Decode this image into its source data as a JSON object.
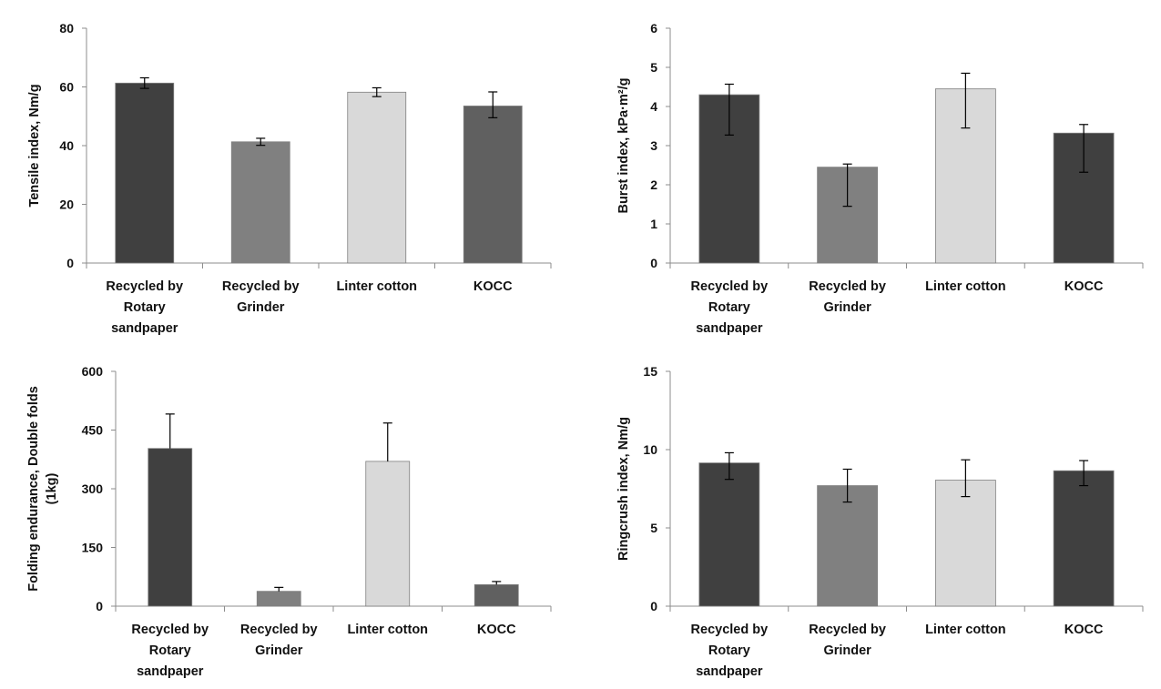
{
  "chart_data": [
    {
      "type": "bar",
      "categories": [
        [
          "Recycled by",
          "Rotary",
          "sandpaper"
        ],
        [
          "Recycled by",
          "Grinder"
        ],
        [
          "Linter cotton"
        ],
        [
          "KOCC"
        ]
      ],
      "values": [
        61.3,
        41.3,
        58.2,
        53.5
      ],
      "error_up": [
        1.8,
        1.2,
        1.5,
        4.8
      ],
      "error_down": [
        1.8,
        1.2,
        1.5,
        4.0
      ],
      "colors": [
        "#404040",
        "#808080",
        "#d9d9d9",
        "#606060"
      ],
      "ylabel": "Tensile index, Nm/g",
      "ylim": [
        0,
        80
      ],
      "yticks": [
        0,
        20,
        40,
        60,
        80
      ],
      "title": "",
      "xlabel": "",
      "grid": false
    },
    {
      "type": "bar",
      "categories": [
        [
          "Recycled by",
          "Rotary",
          "sandpaper"
        ],
        [
          "Recycled by",
          "Grinder"
        ],
        [
          "Linter cotton"
        ],
        [
          "KOCC"
        ]
      ],
      "values": [
        4.3,
        2.45,
        4.45,
        3.32
      ],
      "error_up": [
        0.27,
        0.08,
        0.4,
        0.22
      ],
      "error_down": [
        1.03,
        1.0,
        1.0,
        1.0
      ],
      "colors": [
        "#404040",
        "#808080",
        "#d9d9d9",
        "#404040"
      ],
      "ylabel": "Burst index, kPa·m²/g",
      "ylim": [
        0,
        6
      ],
      "yticks": [
        0,
        1,
        2,
        3,
        4,
        5,
        6
      ],
      "title": "",
      "xlabel": "",
      "grid": false
    },
    {
      "type": "bar",
      "categories": [
        [
          "Recycled by",
          "Rotary",
          "sandpaper"
        ],
        [
          "Recycled by",
          "Grinder"
        ],
        [
          "Linter cotton"
        ],
        [
          "KOCC"
        ]
      ],
      "values": [
        403,
        38,
        370,
        55
      ],
      "error_up": [
        88,
        10,
        98,
        8
      ],
      "error_down": [
        0,
        0,
        0,
        0
      ],
      "colors": [
        "#404040",
        "#808080",
        "#d9d9d9",
        "#606060"
      ],
      "ylabel": [
        "Folding endurance, Double folds",
        "(1kg)"
      ],
      "ylim": [
        0,
        600
      ],
      "yticks": [
        0,
        150,
        300,
        450,
        600
      ],
      "title": "",
      "xlabel": "",
      "grid": false
    },
    {
      "type": "bar",
      "categories": [
        [
          "Recycled by",
          "Rotary",
          "sandpaper"
        ],
        [
          "Recycled by",
          "Grinder"
        ],
        [
          "Linter cotton"
        ],
        [
          "KOCC"
        ]
      ],
      "values": [
        9.15,
        7.7,
        8.05,
        8.65
      ],
      "error_up": [
        0.65,
        1.05,
        1.3,
        0.65
      ],
      "error_down": [
        1.05,
        1.05,
        1.05,
        0.95
      ],
      "colors": [
        "#404040",
        "#808080",
        "#d9d9d9",
        "#404040"
      ],
      "ylabel": "Ringcrush index, Nm/g",
      "ylim": [
        0,
        15
      ],
      "yticks": [
        0,
        5,
        10,
        15
      ],
      "title": "",
      "xlabel": "",
      "grid": false
    }
  ]
}
